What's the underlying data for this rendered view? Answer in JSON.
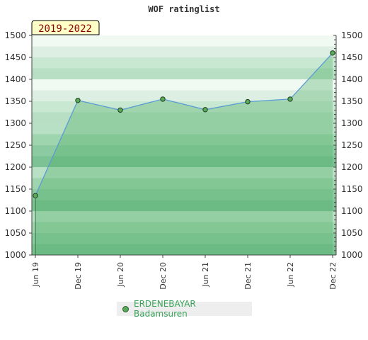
{
  "chart_data": {
    "type": "area",
    "title": "WOF ratinglist",
    "period_label": "2019-2022",
    "xlabel": "",
    "ylabel": "",
    "x": [
      "Jun 19",
      "Dec 19",
      "Jun 20",
      "Dec 20",
      "Jun 21",
      "Dec 21",
      "Jun 22",
      "Dec 22"
    ],
    "series": [
      {
        "name": "ERDENEBAYAR Badamsuren",
        "values": [
          1135,
          1352,
          1330,
          1355,
          1331,
          1349,
          1355,
          1460
        ]
      }
    ],
    "ylim": [
      1000,
      1500
    ],
    "yticks": [
      1000,
      1050,
      1100,
      1150,
      1200,
      1250,
      1300,
      1350,
      1400,
      1450,
      1500
    ],
    "legend": "bottom",
    "colors": {
      "line": "#5b9bd5",
      "marker": "#5aaa5a",
      "area": "#4fae68",
      "legend_text": "#3aa35a"
    }
  }
}
